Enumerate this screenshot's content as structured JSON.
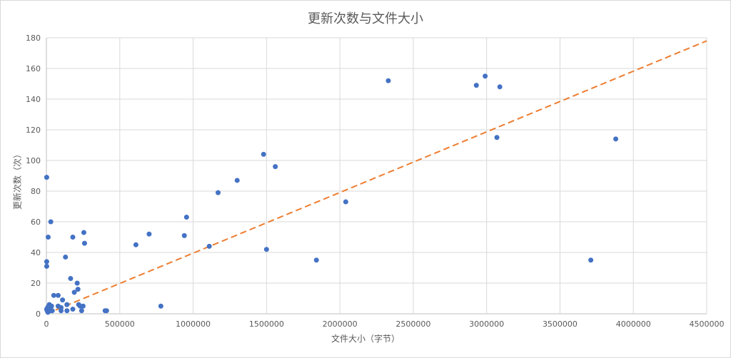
{
  "chart_data": {
    "type": "scatter",
    "title": "更新次数与文件大小",
    "xlabel": "文件大小（字节）",
    "ylabel": "更新次数（次）",
    "xlim": [
      0,
      4500000
    ],
    "ylim": [
      0,
      180
    ],
    "xticks": [
      0,
      500000,
      1000000,
      1500000,
      2000000,
      2500000,
      3000000,
      3500000,
      4000000,
      4500000
    ],
    "yticks": [
      0,
      20,
      40,
      60,
      80,
      100,
      120,
      140,
      160,
      180
    ],
    "grid": true,
    "series": [
      {
        "color": "#4472c4",
        "points": [
          [
            2000,
            89
          ],
          [
            2000,
            34
          ],
          [
            2000,
            31
          ],
          [
            12000,
            50
          ],
          [
            30000,
            60
          ],
          [
            2000,
            3
          ],
          [
            5000,
            2
          ],
          [
            8000,
            4
          ],
          [
            10000,
            1
          ],
          [
            15000,
            5
          ],
          [
            20000,
            6
          ],
          [
            25000,
            3
          ],
          [
            30000,
            2
          ],
          [
            35000,
            5
          ],
          [
            40000,
            2
          ],
          [
            50000,
            12
          ],
          [
            80000,
            12
          ],
          [
            80000,
            5
          ],
          [
            100000,
            4
          ],
          [
            110000,
            9
          ],
          [
            100000,
            2
          ],
          [
            130000,
            37
          ],
          [
            140000,
            6
          ],
          [
            140000,
            2
          ],
          [
            165000,
            23
          ],
          [
            180000,
            50
          ],
          [
            180000,
            3
          ],
          [
            190000,
            14
          ],
          [
            210000,
            20
          ],
          [
            215000,
            16
          ],
          [
            220000,
            6
          ],
          [
            230000,
            5
          ],
          [
            240000,
            2
          ],
          [
            250000,
            5
          ],
          [
            255000,
            53
          ],
          [
            260000,
            46
          ],
          [
            400000,
            2
          ],
          [
            410000,
            2
          ],
          [
            610000,
            45
          ],
          [
            700000,
            52
          ],
          [
            780000,
            5
          ],
          [
            940000,
            51
          ],
          [
            955000,
            63
          ],
          [
            1110000,
            44
          ],
          [
            1170000,
            79
          ],
          [
            1300000,
            87
          ],
          [
            1480000,
            104
          ],
          [
            1500000,
            42
          ],
          [
            1560000,
            96
          ],
          [
            1840000,
            35
          ],
          [
            2040000,
            73
          ],
          [
            2330000,
            152
          ],
          [
            2930000,
            149
          ],
          [
            2990000,
            155
          ],
          [
            3070000,
            115
          ],
          [
            3090000,
            148
          ],
          [
            3710000,
            35
          ],
          [
            3880000,
            114
          ]
        ]
      }
    ],
    "trendline": {
      "type": "linear",
      "color": "#ed7d31",
      "style": "dashed",
      "from": [
        0,
        0
      ],
      "to": [
        4500000,
        178
      ]
    }
  }
}
